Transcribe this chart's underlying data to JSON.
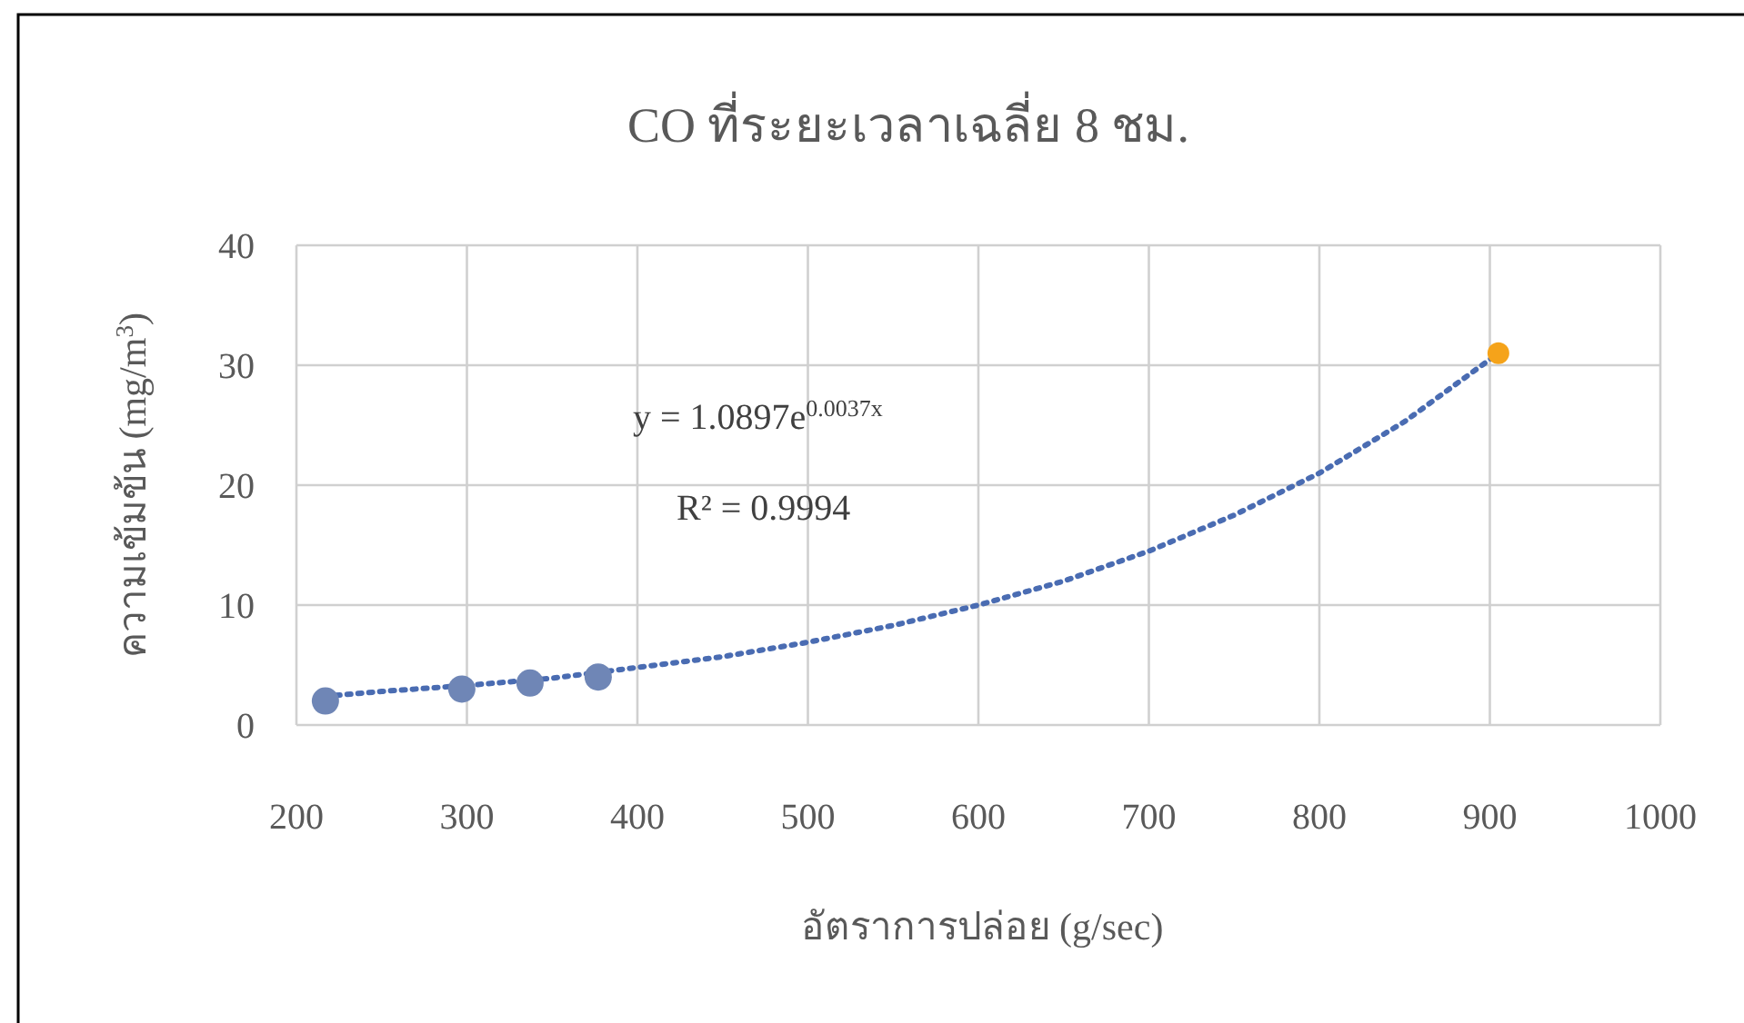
{
  "chart_data": {
    "type": "scatter",
    "title": "CO ที่ระยะเวลาเฉลี่ย 8 ชม.",
    "xlabel": "อัตราการปล่อย (g/sec)",
    "ylabel": "ความเข้มข้น (mg/m$^{3}$)",
    "xlim": [
      200,
      1000
    ],
    "ylim": [
      0,
      40
    ],
    "xticks": [
      200,
      300,
      400,
      500,
      600,
      700,
      800,
      900,
      1000
    ],
    "yticks": [
      0,
      10,
      20,
      30,
      40
    ],
    "grid": true,
    "marker": "circle",
    "annotations": [
      "y = 1.0897e$^{0.0037x}$",
      "R² = 0.9994"
    ],
    "series": [
      {
        "color": "#6f86b6",
        "x": [
          217,
          297,
          337,
          377
        ],
        "values": [
          2,
          3,
          3.5,
          4
        ]
      },
      {
        "color": "#f5a31a",
        "x": [
          905
        ],
        "values": [
          31
        ]
      },
      {
        "type": "line",
        "color": "#4a6cb2",
        "line_style": "dotted",
        "marker": "none",
        "x": [
          217,
          250,
          300,
          350,
          400,
          450,
          500,
          550,
          600,
          650,
          700,
          750,
          800,
          850,
          905
        ],
        "values": [
          2.4,
          2.8,
          3.3,
          3.9,
          4.8,
          5.7,
          6.9,
          8.3,
          10,
          12,
          14.5,
          17.5,
          21,
          25.3,
          31
        ]
      }
    ]
  }
}
